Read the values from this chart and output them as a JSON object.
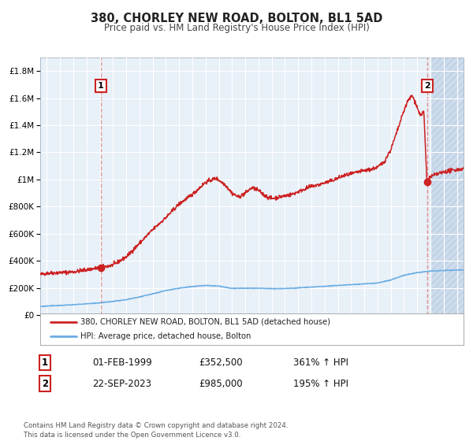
{
  "title": "380, CHORLEY NEW ROAD, BOLTON, BL1 5AD",
  "subtitle": "Price paid vs. HM Land Registry's House Price Index (HPI)",
  "plot_bg_color": "#e8f0f8",
  "grid_color": "#ffffff",
  "hpi_color": "#cc2222",
  "bolton_color": "#6aade4",
  "sale1_date": 1999.08,
  "sale1_price": 352500,
  "sale2_date": 2023.73,
  "sale2_price": 985000,
  "ylim": [
    0,
    1900000
  ],
  "xlim_start": 1994.5,
  "xlim_end": 2026.5,
  "legend_label1": "380, CHORLEY NEW ROAD, BOLTON, BL1 5AD (detached house)",
  "legend_label2": "HPI: Average price, detached house, Bolton",
  "table_row1": [
    "1",
    "01-FEB-1999",
    "£352,500",
    "361% ↑ HPI"
  ],
  "table_row2": [
    "2",
    "22-SEP-2023",
    "£985,000",
    "195% ↑ HPI"
  ],
  "footer": "Contains HM Land Registry data © Crown copyright and database right 2024.\nThis data is licensed under the Open Government Licence v3.0.",
  "hatch_color": "#c0d4e8",
  "dashed_line_color": "#e08080"
}
